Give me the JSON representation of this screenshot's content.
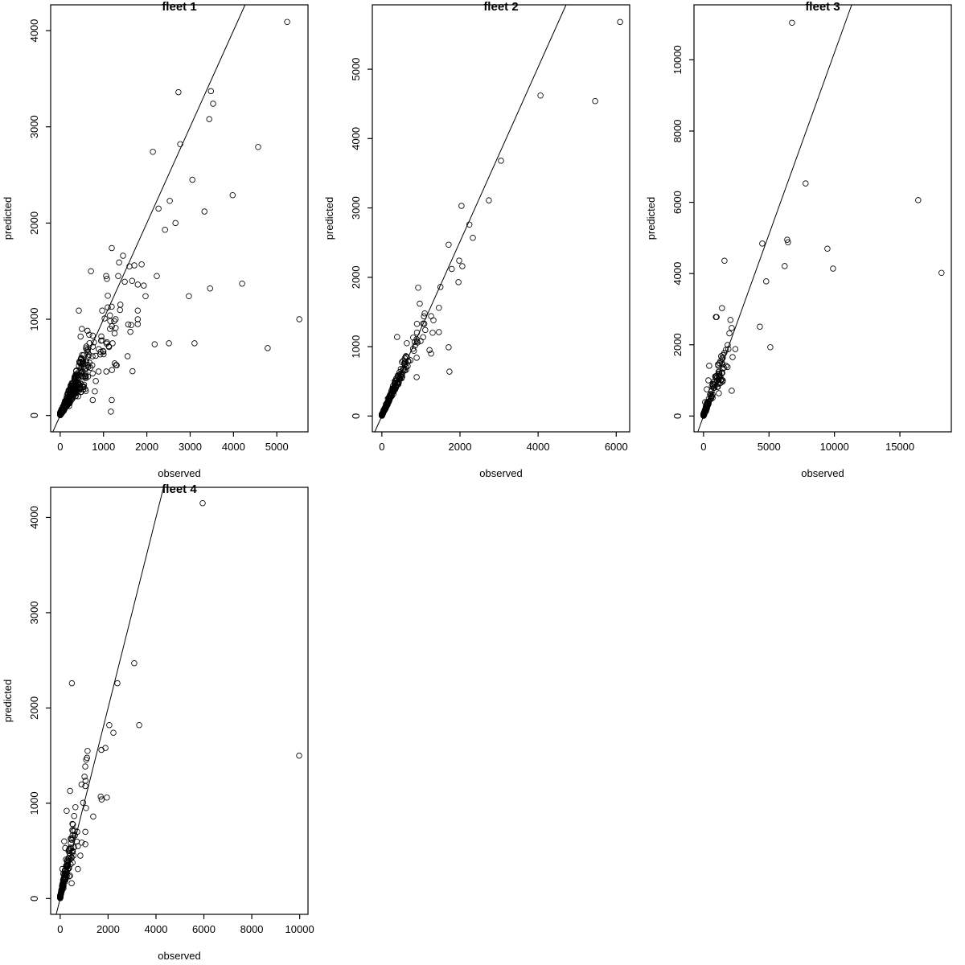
{
  "figure": {
    "background": "#ffffff",
    "stroke_color": "#000000",
    "text_color": "#000000"
  },
  "chart_data": [
    {
      "type": "scatter",
      "title": "fleet 1",
      "xlabel": "observed",
      "ylabel": "predicted",
      "xlim": [
        -220,
        5720
      ],
      "ylim": [
        -170,
        4268
      ],
      "x_ticks": [
        0,
        1000,
        2000,
        3000,
        4000,
        5000
      ],
      "y_ticks": [
        0,
        1000,
        2000,
        3000,
        4000
      ],
      "grid": false,
      "legend": null,
      "line": {
        "slope": 1.0,
        "intercept": 0
      },
      "points": [
        [
          5240,
          4090
        ],
        [
          2730,
          3360
        ],
        [
          3480,
          3370
        ],
        [
          3530,
          3240
        ],
        [
          3440,
          3080
        ],
        [
          2770,
          2820
        ],
        [
          2140,
          2740
        ],
        [
          4570,
          2790
        ],
        [
          3050,
          2450
        ],
        [
          2530,
          2230
        ],
        [
          2270,
          2150
        ],
        [
          3330,
          2120
        ],
        [
          3980,
          2290
        ],
        [
          2660,
          2000
        ],
        [
          2420,
          1930
        ],
        [
          1190,
          1740
        ],
        [
          1450,
          1660
        ],
        [
          710,
          1500
        ],
        [
          1060,
          1450
        ],
        [
          1080,
          1420
        ],
        [
          1360,
          1590
        ],
        [
          1600,
          1550
        ],
        [
          1710,
          1560
        ],
        [
          1880,
          1570
        ],
        [
          2230,
          1450
        ],
        [
          1340,
          1450
        ],
        [
          1660,
          1400
        ],
        [
          1790,
          1360
        ],
        [
          1930,
          1350
        ],
        [
          1970,
          1240
        ],
        [
          2970,
          1240
        ],
        [
          3460,
          1320
        ],
        [
          4200,
          1370
        ],
        [
          970,
          1090
        ],
        [
          430,
          1090
        ],
        [
          1150,
          1040
        ],
        [
          1280,
          1000
        ],
        [
          1790,
          1090
        ],
        [
          1790,
          1000
        ],
        [
          1640,
          940
        ],
        [
          1620,
          870
        ],
        [
          1790,
          950
        ],
        [
          1150,
          900
        ],
        [
          1280,
          910
        ],
        [
          630,
          880
        ],
        [
          500,
          900
        ],
        [
          470,
          820
        ],
        [
          670,
          840
        ],
        [
          750,
          830
        ],
        [
          780,
          760
        ],
        [
          970,
          780
        ],
        [
          1080,
          760
        ],
        [
          1120,
          720
        ],
        [
          1210,
          750
        ],
        [
          890,
          690
        ],
        [
          990,
          670
        ],
        [
          820,
          620
        ],
        [
          2180,
          740
        ],
        [
          2510,
          750
        ],
        [
          3100,
          750
        ],
        [
          4790,
          700
        ],
        [
          5520,
          1000
        ],
        [
          1670,
          460
        ],
        [
          1190,
          160
        ],
        [
          1170,
          40
        ],
        [
          750,
          160
        ],
        [
          800,
          250
        ],
        [
          470,
          290
        ],
        [
          410,
          380
        ]
      ],
      "clusters": [
        {
          "n": 360,
          "xmin": 0,
          "xmax": 650,
          "exp": 2.5,
          "slope": 0.88,
          "spread": 0.8,
          "ynoise": 30,
          "seed": 101
        },
        {
          "n": 75,
          "xmin": 200,
          "xmax": 1600,
          "exp": 1.6,
          "slope": 0.72,
          "spread": 1.0,
          "ynoise": 60,
          "seed": 102
        }
      ]
    },
    {
      "type": "scatter",
      "title": "fleet 2",
      "xlabel": "observed",
      "ylabel": "predicted",
      "xlim": [
        -244,
        6344
      ],
      "ylim": [
        -228,
        5928
      ],
      "x_ticks": [
        0,
        2000,
        4000,
        6000
      ],
      "y_ticks": [
        0,
        1000,
        2000,
        3000,
        4000,
        5000
      ],
      "grid": false,
      "legend": null,
      "line": {
        "slope": 1.257,
        "intercept": 0
      },
      "points": [
        [
          6100,
          5680
        ],
        [
          4060,
          4620
        ],
        [
          5460,
          4540
        ],
        [
          3050,
          3680
        ],
        [
          2740,
          3110
        ],
        [
          2040,
          3030
        ],
        [
          2240,
          2760
        ],
        [
          2330,
          2570
        ],
        [
          1710,
          2470
        ],
        [
          1980,
          2240
        ],
        [
          2060,
          2160
        ],
        [
          1790,
          2120
        ],
        [
          1960,
          1930
        ],
        [
          1500,
          1860
        ],
        [
          930,
          1850
        ],
        [
          970,
          1620
        ],
        [
          1460,
          1560
        ],
        [
          1260,
          1440
        ],
        [
          1320,
          1380
        ],
        [
          1110,
          1240
        ],
        [
          1300,
          1200
        ],
        [
          1460,
          1210
        ],
        [
          390,
          1140
        ],
        [
          640,
          1050
        ],
        [
          820,
          940
        ],
        [
          1220,
          950
        ],
        [
          1260,
          900
        ],
        [
          890,
          840
        ],
        [
          680,
          790
        ],
        [
          600,
          750
        ],
        [
          660,
          720
        ],
        [
          1710,
          990
        ],
        [
          1730,
          640
        ],
        [
          890,
          560
        ],
        [
          520,
          620
        ],
        [
          560,
          660
        ],
        [
          460,
          540
        ],
        [
          420,
          500
        ],
        [
          390,
          460
        ],
        [
          350,
          420
        ],
        [
          310,
          380
        ],
        [
          280,
          340
        ]
      ],
      "clusters": [
        {
          "n": 170,
          "xmin": 0,
          "xmax": 700,
          "exp": 2.8,
          "slope": 1.24,
          "spread": 0.3,
          "ynoise": 28,
          "seed": 202
        },
        {
          "n": 40,
          "xmin": 150,
          "xmax": 1100,
          "exp": 1.4,
          "slope": 1.25,
          "spread": 0.35,
          "ynoise": 40,
          "seed": 203
        }
      ]
    },
    {
      "type": "scatter",
      "title": "fleet 3",
      "xlabel": "observed",
      "ylabel": "predicted",
      "xlim": [
        -728,
        18928
      ],
      "ylim": [
        -444,
        11544
      ],
      "x_ticks": [
        0,
        5000,
        10000,
        15000
      ],
      "y_ticks": [
        0,
        2000,
        4000,
        6000,
        8000,
        10000
      ],
      "grid": false,
      "legend": null,
      "line": {
        "slope": 1.02,
        "intercept": 0
      },
      "points": [
        [
          6760,
          11040
        ],
        [
          7800,
          6530
        ],
        [
          16400,
          6060
        ],
        [
          6390,
          4950
        ],
        [
          4490,
          4840
        ],
        [
          6450,
          4880
        ],
        [
          9460,
          4700
        ],
        [
          1600,
          4360
        ],
        [
          6200,
          4210
        ],
        [
          9890,
          4140
        ],
        [
          18180,
          4020
        ],
        [
          4790,
          3780
        ],
        [
          1410,
          3030
        ],
        [
          940,
          2780
        ],
        [
          1000,
          2780
        ],
        [
          2150,
          2470
        ],
        [
          4300,
          2510
        ],
        [
          5100,
          1930
        ],
        [
          1900,
          1880
        ],
        [
          2430,
          1880
        ],
        [
          1350,
          1680
        ],
        [
          1720,
          1410
        ],
        [
          1410,
          1500
        ],
        [
          1110,
          1450
        ],
        [
          430,
          1410
        ],
        [
          1470,
          1000
        ],
        [
          1110,
          1020
        ],
        [
          370,
          1000
        ],
        [
          2150,
          710
        ],
        [
          1170,
          640
        ],
        [
          250,
          750
        ],
        [
          850,
          800
        ],
        [
          700,
          900
        ],
        [
          650,
          560
        ],
        [
          550,
          480
        ],
        [
          120,
          390
        ]
      ],
      "clusters": [
        {
          "n": 130,
          "xmin": 0,
          "xmax": 1600,
          "exp": 2.8,
          "slope": 0.98,
          "spread": 0.5,
          "ynoise": 60,
          "seed": 303
        },
        {
          "n": 30,
          "xmin": 200,
          "xmax": 2300,
          "exp": 1.5,
          "slope": 0.95,
          "spread": 0.7,
          "ynoise": 80,
          "seed": 304
        }
      ]
    },
    {
      "type": "scatter",
      "title": "fleet 4",
      "xlabel": "observed",
      "ylabel": "predicted",
      "xlim": [
        -398,
        10348
      ],
      "ylim": [
        -166,
        4316
      ],
      "x_ticks": [
        0,
        2000,
        4000,
        6000,
        8000,
        10000
      ],
      "y_ticks": [
        0,
        1000,
        2000,
        3000,
        4000
      ],
      "grid": false,
      "legend": null,
      "line": {
        "slope": 1.0,
        "intercept": 0
      },
      "points": [
        [
          5950,
          4150
        ],
        [
          3090,
          2470
        ],
        [
          490,
          2260
        ],
        [
          2390,
          2260
        ],
        [
          2050,
          1820
        ],
        [
          3300,
          1820
        ],
        [
          2220,
          1740
        ],
        [
          1720,
          1560
        ],
        [
          1890,
          1580
        ],
        [
          9980,
          1500
        ],
        [
          1050,
          1180
        ],
        [
          410,
          1130
        ],
        [
          1690,
          1070
        ],
        [
          1730,
          1040
        ],
        [
          1950,
          1060
        ],
        [
          270,
          920
        ],
        [
          1080,
          950
        ],
        [
          1380,
          860
        ],
        [
          710,
          700
        ],
        [
          1050,
          700
        ],
        [
          480,
          630
        ],
        [
          1050,
          570
        ],
        [
          740,
          550
        ],
        [
          170,
          600
        ],
        [
          210,
          530
        ],
        [
          380,
          520
        ],
        [
          410,
          450
        ],
        [
          840,
          450
        ],
        [
          240,
          410
        ],
        [
          310,
          370
        ],
        [
          740,
          310
        ],
        [
          410,
          240
        ],
        [
          170,
          200
        ],
        [
          480,
          160
        ],
        [
          90,
          310
        ],
        [
          130,
          260
        ]
      ],
      "clusters": [
        {
          "n": 140,
          "xmin": 0,
          "xmax": 650,
          "exp": 2.6,
          "slope": 1.15,
          "spread": 0.6,
          "ynoise": 30,
          "seed": 404
        },
        {
          "n": 30,
          "xmin": 100,
          "xmax": 1200,
          "exp": 1.5,
          "slope": 1.0,
          "spread": 0.8,
          "ynoise": 40,
          "seed": 405
        }
      ]
    }
  ]
}
